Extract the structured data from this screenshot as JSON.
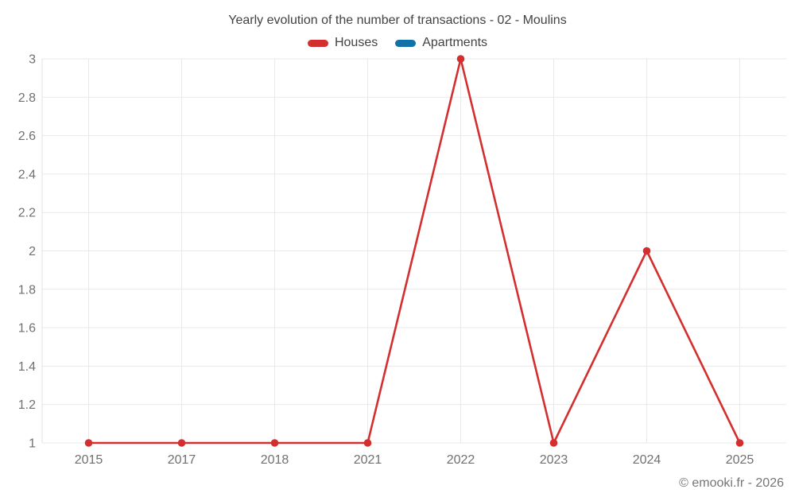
{
  "header": {
    "title": "Yearly evolution of the number of transactions - 02 - Moulins"
  },
  "footer": {
    "copyright": "© emooki.fr - 2026"
  },
  "colors": {
    "houses": "#d32f2f",
    "apartments": "#1271a7",
    "gridline": "#e9e9e9",
    "axis_line": "#e0e0e0",
    "tick_text": "#707070",
    "title_text": "#424242",
    "background": "#ffffff"
  },
  "chart_data": {
    "type": "line",
    "title": "Yearly evolution of the number of transactions - 02 - Moulins",
    "categories": [
      "2015",
      "2017",
      "2018",
      "2021",
      "2022",
      "2023",
      "2024",
      "2025"
    ],
    "series": [
      {
        "name": "Houses",
        "color": "#d32f2f",
        "values": [
          1,
          1,
          1,
          1,
          3,
          1,
          2,
          1
        ]
      },
      {
        "name": "Apartments",
        "color": "#1271a7",
        "values": []
      }
    ],
    "xlabel": "",
    "ylabel": "",
    "ylim": [
      1,
      3
    ],
    "yticks": [
      1,
      1.2,
      1.4,
      1.6,
      1.8,
      2,
      2.2,
      2.4,
      2.6,
      2.8,
      3
    ],
    "ytick_labels": [
      "1",
      "1.2",
      "1.4",
      "1.6",
      "1.8",
      "2",
      "2.2",
      "2.4",
      "2.6",
      "2.8",
      "3"
    ],
    "grid": true,
    "legend_position": "top",
    "marker_radius": 4.8,
    "line_width": 2.6
  }
}
